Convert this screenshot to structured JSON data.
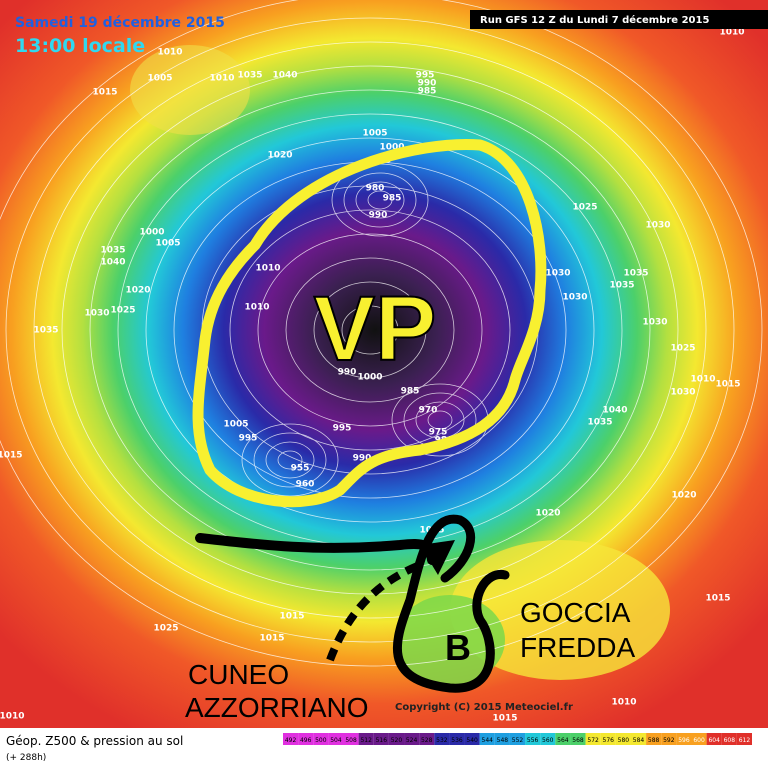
{
  "header": {
    "date": "Samedi 19 décembre 2015",
    "time": "13:00 locale",
    "run": "Run GFS 12 Z du Lundi 7 décembre 2015"
  },
  "annotations": {
    "vp": "VP",
    "goccia": [
      "GOCCIA",
      "FREDDA"
    ],
    "cuneo": [
      "CUNEO",
      "AZZORRIANO"
    ],
    "low": "B"
  },
  "copyright": "Copyright (C) 2015 Meteociel.fr",
  "legend": {
    "title": "Géop. Z500 & pression au sol",
    "lead": "(+ 288h)",
    "scale": [
      492,
      496,
      500,
      504,
      508,
      512,
      516,
      520,
      524,
      528,
      532,
      536,
      540,
      544,
      548,
      552,
      556,
      560,
      564,
      568,
      572,
      576,
      580,
      584,
      588,
      592,
      596,
      600,
      604,
      608,
      612
    ]
  },
  "isobars": [
    1010,
    1005,
    1015,
    1010,
    1035,
    1040,
    995,
    990,
    985,
    1005,
    1000,
    1020,
    995,
    980,
    985,
    990,
    1025,
    1030,
    1000,
    1005,
    1035,
    1040,
    1010,
    1030,
    1030,
    1035,
    1035,
    1020,
    1025,
    1030,
    1010,
    1035,
    1030,
    1025,
    990,
    1000,
    985,
    970,
    975,
    980,
    1005,
    995,
    995,
    990,
    1015,
    960,
    955,
    1040,
    1035,
    1010,
    1015,
    1020,
    1020,
    1025,
    1015,
    1015,
    1025,
    1015,
    1010,
    1015,
    1010,
    1010,
    1030
  ]
}
